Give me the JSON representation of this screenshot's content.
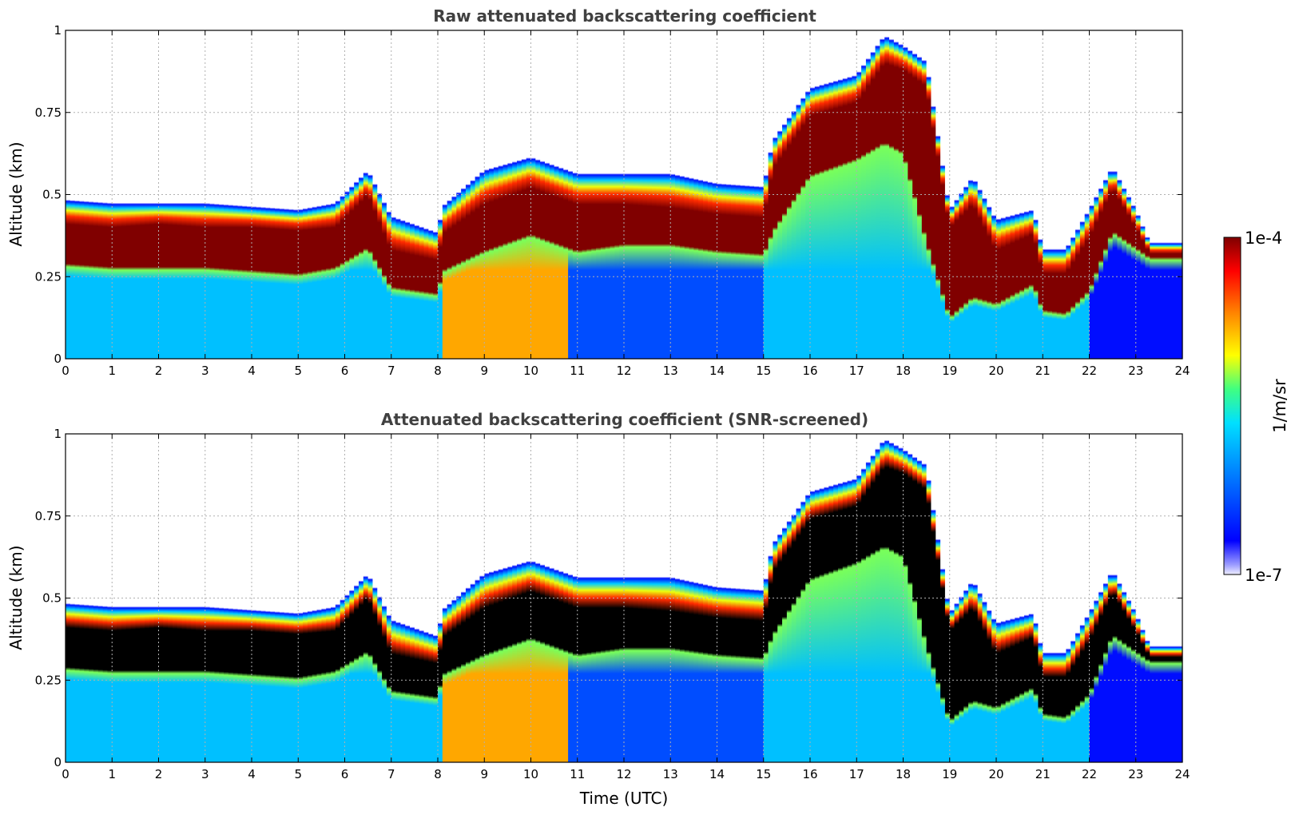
{
  "chart_data": [
    {
      "type": "heatmap",
      "title": "Raw attenuated backscattering coefficient",
      "xlabel": "",
      "ylabel": "Altitude (km)",
      "xlim": [
        0,
        24
      ],
      "ylim": [
        0,
        1
      ],
      "xticks": [
        "0",
        "1",
        "2",
        "3",
        "4",
        "5",
        "6",
        "7",
        "8",
        "9",
        "10",
        "11",
        "12",
        "13",
        "14",
        "15",
        "16",
        "17",
        "18",
        "19",
        "20",
        "21",
        "22",
        "23",
        "24"
      ],
      "yticks": [
        "0",
        "0.25",
        "0.5",
        "0.75",
        "1"
      ],
      "grid": true,
      "screened": false
    },
    {
      "type": "heatmap",
      "title": "Attenuated backscattering coefficient (SNR-screened)",
      "xlabel": "Time (UTC)",
      "ylabel": "Altitude (km)",
      "xlim": [
        0,
        24
      ],
      "ylim": [
        0,
        1
      ],
      "xticks": [
        "0",
        "1",
        "2",
        "3",
        "4",
        "5",
        "6",
        "7",
        "8",
        "9",
        "10",
        "11",
        "12",
        "13",
        "14",
        "15",
        "16",
        "17",
        "18",
        "19",
        "20",
        "21",
        "22",
        "23",
        "24"
      ],
      "yticks": [
        "0",
        "0.25",
        "0.5",
        "0.75",
        "1"
      ],
      "grid": true,
      "screened": true
    }
  ],
  "colorbar": {
    "label": "1/m/sr",
    "max_label": "1e-4",
    "min_label": "1e-7",
    "range": [
      1e-07,
      0.0001
    ],
    "scale": "log",
    "colormap": "jet"
  },
  "layer_profile": {
    "hours": [
      0,
      1,
      2,
      3,
      4,
      5,
      5.8,
      6.5,
      7,
      8,
      8.1,
      9,
      10,
      11,
      12,
      13,
      14,
      15,
      15.2,
      16,
      17,
      17.6,
      18,
      18.5,
      19,
      19.5,
      20,
      20.8,
      21,
      21.5,
      22,
      22.5,
      23,
      23.3
    ],
    "layer_top_km": [
      0.48,
      0.47,
      0.47,
      0.47,
      0.46,
      0.45,
      0.47,
      0.57,
      0.43,
      0.38,
      0.46,
      0.57,
      0.61,
      0.56,
      0.56,
      0.56,
      0.53,
      0.52,
      0.66,
      0.82,
      0.86,
      0.98,
      0.95,
      0.9,
      0.45,
      0.55,
      0.42,
      0.45,
      0.33,
      0.33,
      0.45,
      0.58,
      0.45,
      0.35
    ],
    "layer_core_top_km": [
      0.41,
      0.4,
      0.41,
      0.4,
      0.4,
      0.39,
      0.4,
      0.5,
      0.33,
      0.3,
      0.38,
      0.47,
      0.52,
      0.47,
      0.47,
      0.46,
      0.44,
      0.43,
      0.58,
      0.74,
      0.78,
      0.9,
      0.88,
      0.83,
      0.4,
      0.47,
      0.33,
      0.38,
      0.26,
      0.26,
      0.37,
      0.52,
      0.4,
      0.32
    ],
    "layer_core_bottom_km": [
      0.28,
      0.27,
      0.27,
      0.27,
      0.26,
      0.25,
      0.27,
      0.33,
      0.21,
      0.19,
      0.26,
      0.32,
      0.37,
      0.32,
      0.34,
      0.34,
      0.32,
      0.31,
      0.38,
      0.55,
      0.6,
      0.65,
      0.62,
      0.35,
      0.12,
      0.18,
      0.16,
      0.22,
      0.14,
      0.13,
      0.2,
      0.38,
      0.33,
      0.3
    ]
  }
}
